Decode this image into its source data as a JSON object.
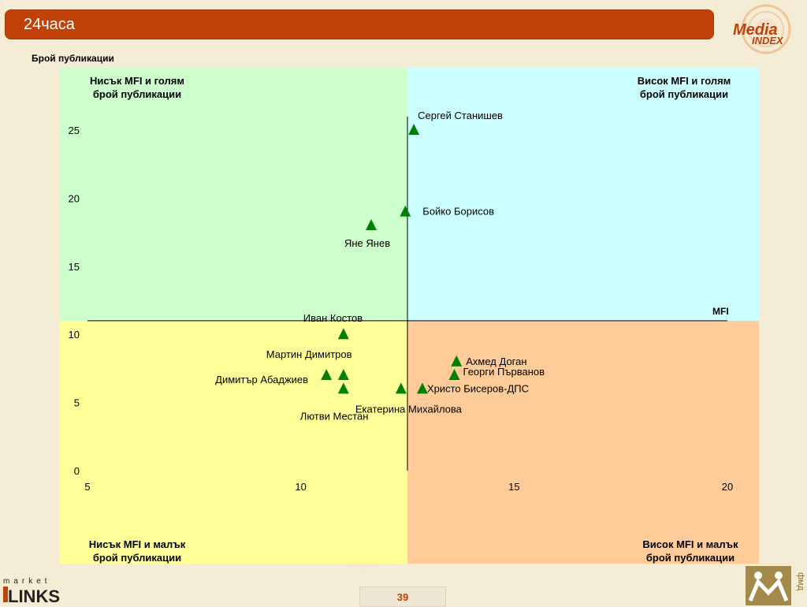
{
  "header": {
    "title": "24часа"
  },
  "logos": {
    "media_index": [
      "Media",
      "INDEX"
    ],
    "links": [
      "market",
      "LINKS"
    ],
    "fmd": "фмд"
  },
  "page_number": "39",
  "quadrants": {
    "top_left": [
      "Нисък MFI и голям",
      "брой публикации"
    ],
    "top_right": [
      "Висок MFI и голям",
      "брой публикации"
    ],
    "bottom_left": [
      "Нисък MFI и малък",
      "брой публикации"
    ],
    "bottom_right": [
      "Висок MFI и малък",
      "брой публикации"
    ],
    "colors": {
      "top_left": "#ccffcc",
      "top_right": "#ccffff",
      "bottom_left": "#ffff99",
      "bottom_right": "#ffcc99"
    }
  },
  "chart_data": {
    "type": "scatter",
    "ylabel": "Брой публикации",
    "xlabel": "MFI",
    "xlim": [
      5,
      20
    ],
    "ylim": [
      0,
      25
    ],
    "x_ticks": [
      "5",
      "10",
      "15",
      "20"
    ],
    "y_ticks": [
      "0",
      "5",
      "10",
      "15",
      "20",
      "25"
    ],
    "divider_x": 12.5,
    "divider_y": 11,
    "marker_color": "#008000",
    "points": [
      {
        "name": "Сергей Станишев",
        "x": 12.65,
        "y": 25
      },
      {
        "name": "Бойко Борисов",
        "x": 12.45,
        "y": 19
      },
      {
        "name": "Яне Янев",
        "x": 11.65,
        "y": 18
      },
      {
        "name": "Иван Костов",
        "x": 11.0,
        "y": 10
      },
      {
        "name": "Мартин Димитров",
        "x": 11.0,
        "y": 7
      },
      {
        "name": "Димитър Абаджиев",
        "x": 10.6,
        "y": 7
      },
      {
        "name": "Лютви Местан",
        "x": 11.0,
        "y": 6
      },
      {
        "name": "Екатерина Михайлова",
        "x": 12.35,
        "y": 6
      },
      {
        "name": "Христо Бисеров-ДПС",
        "x": 12.85,
        "y": 6
      },
      {
        "name": "Ахмед Доган",
        "x": 13.65,
        "y": 8
      },
      {
        "name": "Георги Първанов",
        "x": 13.6,
        "y": 7
      }
    ]
  }
}
